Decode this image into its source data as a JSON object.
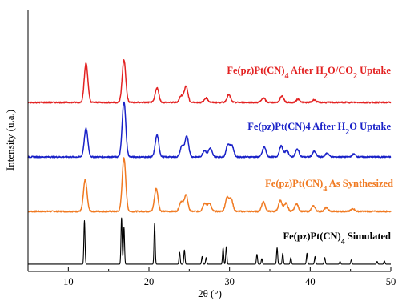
{
  "chart_data": {
    "type": "line",
    "title": "",
    "xlabel": "2θ (°)",
    "ylabel": "Intensity (u.a.)",
    "xlim": [
      5,
      50
    ],
    "x_ticks": [
      10,
      20,
      30,
      40,
      50
    ],
    "y_ticks": "none",
    "grid": false,
    "legend": "none",
    "series_order": "bottom-to-top",
    "series": [
      {
        "name": "Fe(pz)Pt(CN)₄ Simulated",
        "label_parts": [
          "Fe(pz)Pt(CN)",
          "4",
          " Simulated"
        ],
        "color": "#000000",
        "style": "sharp",
        "offset": 0.0,
        "baseline": 0.03,
        "peaks": [
          {
            "x": 12.0,
            "h": 0.8
          },
          {
            "x": 16.6,
            "h": 0.85
          },
          {
            "x": 16.9,
            "h": 0.68
          },
          {
            "x": 20.7,
            "h": 0.75
          },
          {
            "x": 23.8,
            "h": 0.22
          },
          {
            "x": 24.4,
            "h": 0.26
          },
          {
            "x": 26.6,
            "h": 0.14
          },
          {
            "x": 27.1,
            "h": 0.12
          },
          {
            "x": 29.2,
            "h": 0.3
          },
          {
            "x": 29.6,
            "h": 0.32
          },
          {
            "x": 33.4,
            "h": 0.18
          },
          {
            "x": 34.0,
            "h": 0.1
          },
          {
            "x": 35.9,
            "h": 0.3
          },
          {
            "x": 36.6,
            "h": 0.2
          },
          {
            "x": 37.6,
            "h": 0.12
          },
          {
            "x": 39.6,
            "h": 0.2
          },
          {
            "x": 40.6,
            "h": 0.14
          },
          {
            "x": 41.8,
            "h": 0.12
          },
          {
            "x": 43.7,
            "h": 0.05
          },
          {
            "x": 45.1,
            "h": 0.08
          },
          {
            "x": 48.3,
            "h": 0.05
          },
          {
            "x": 49.2,
            "h": 0.06
          }
        ]
      },
      {
        "name": "Fe(pz)Pt(CN)₄ As Synthesized",
        "label_parts": [
          "Fe(pz)Pt(CN)",
          "4",
          " As Synthesized"
        ],
        "color": "#f07a22",
        "style": "broad",
        "offset": 1.0,
        "baseline": 0.0,
        "peaks": [
          {
            "x": 12.1,
            "h": 0.58
          },
          {
            "x": 16.9,
            "h": 0.98
          },
          {
            "x": 20.9,
            "h": 0.42
          },
          {
            "x": 24.0,
            "h": 0.18
          },
          {
            "x": 24.6,
            "h": 0.3
          },
          {
            "x": 26.9,
            "h": 0.15
          },
          {
            "x": 27.5,
            "h": 0.15
          },
          {
            "x": 29.7,
            "h": 0.25
          },
          {
            "x": 30.2,
            "h": 0.22
          },
          {
            "x": 34.2,
            "h": 0.18
          },
          {
            "x": 36.3,
            "h": 0.2
          },
          {
            "x": 37.0,
            "h": 0.15
          },
          {
            "x": 38.3,
            "h": 0.14
          },
          {
            "x": 40.4,
            "h": 0.1
          },
          {
            "x": 42.0,
            "h": 0.07
          },
          {
            "x": 45.3,
            "h": 0.05
          }
        ]
      },
      {
        "name": "Fe(pz)Pt(CN)₄ After H₂O Uptake",
        "label_parts": [
          "Fe(pz)Pt(CN)4 After H",
          "2",
          "O Uptake"
        ],
        "color": "#1a22c8",
        "style": "broad",
        "offset": 2.0,
        "baseline": 0.0,
        "peaks": [
          {
            "x": 12.2,
            "h": 0.52
          },
          {
            "x": 16.9,
            "h": 1.02
          },
          {
            "x": 21.0,
            "h": 0.4
          },
          {
            "x": 24.1,
            "h": 0.2
          },
          {
            "x": 24.7,
            "h": 0.38
          },
          {
            "x": 26.9,
            "h": 0.12
          },
          {
            "x": 27.6,
            "h": 0.16
          },
          {
            "x": 29.8,
            "h": 0.22
          },
          {
            "x": 30.3,
            "h": 0.2
          },
          {
            "x": 34.3,
            "h": 0.18
          },
          {
            "x": 36.4,
            "h": 0.2
          },
          {
            "x": 37.1,
            "h": 0.12
          },
          {
            "x": 38.4,
            "h": 0.14
          },
          {
            "x": 40.5,
            "h": 0.1
          },
          {
            "x": 42.1,
            "h": 0.07
          },
          {
            "x": 45.4,
            "h": 0.05
          }
        ]
      },
      {
        "name": "Fe(pz)Pt(CN)₄ After H₂O/CO₂ Uptake",
        "label_parts": [
          "Fe(pz)Pt(CN)",
          "4",
          " After H",
          "2",
          "O/CO",
          "2",
          " Uptake"
        ],
        "color": "#e32222",
        "style": "broad",
        "offset": 3.0,
        "baseline": 0.0,
        "peaks": [
          {
            "x": 12.2,
            "h": 0.72
          },
          {
            "x": 16.9,
            "h": 0.78
          },
          {
            "x": 21.0,
            "h": 0.27
          },
          {
            "x": 24.0,
            "h": 0.12
          },
          {
            "x": 24.6,
            "h": 0.3
          },
          {
            "x": 27.1,
            "h": 0.08
          },
          {
            "x": 29.9,
            "h": 0.14
          },
          {
            "x": 34.2,
            "h": 0.08
          },
          {
            "x": 36.5,
            "h": 0.12
          },
          {
            "x": 38.5,
            "h": 0.06
          },
          {
            "x": 40.5,
            "h": 0.05
          }
        ]
      }
    ]
  }
}
